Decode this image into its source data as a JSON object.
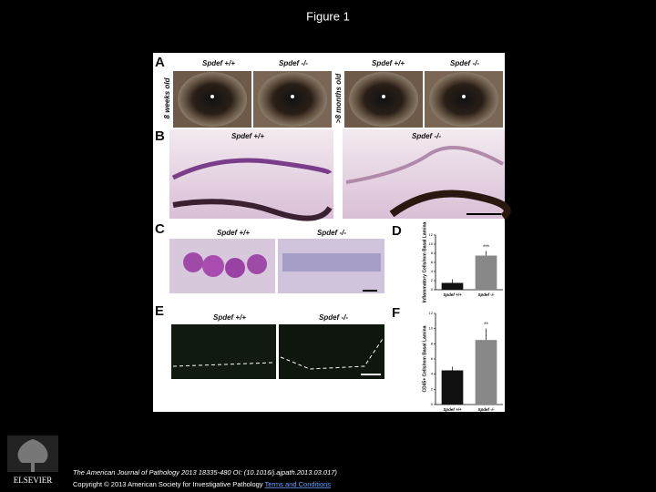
{
  "slide": {
    "title": "Figure 1",
    "figure": {
      "A": {
        "label": "A",
        "headers": [
          "Spdef +/+",
          "Spdef -/-",
          "Spdef +/+",
          "Spdef -/-"
        ],
        "ages": [
          "8 weeks old",
          ">8 months old"
        ]
      },
      "B": {
        "label": "B",
        "headers": [
          "Spdef +/+",
          "Spdef -/-"
        ]
      },
      "C": {
        "label": "C",
        "headers": [
          "Spdef +/+",
          "Spdef -/-"
        ]
      },
      "D": {
        "label": "D",
        "chart": {
          "type": "bar",
          "ylabel": "Inflammatory Cells/mm Basal Lamina",
          "categories": [
            "Spdef +/+",
            "Spdef -/-"
          ],
          "values": [
            1.5,
            7.5
          ],
          "errors": [
            0.8,
            1
          ],
          "colors": [
            "#111111",
            "#888888"
          ],
          "ylim": [
            0,
            12
          ],
          "yticks": [
            0,
            2,
            4,
            6,
            8,
            10,
            12
          ],
          "significance": "***"
        }
      },
      "E": {
        "label": "E",
        "headers": [
          "Spdef +/+",
          "Spdef -/-"
        ]
      },
      "F": {
        "label": "F",
        "chart": {
          "type": "bar",
          "ylabel": "CD45+ Cells/mm Basal Lamina",
          "categories": [
            "Spdef +/+",
            "Spdef -/-"
          ],
          "values": [
            4.5,
            8.5
          ],
          "errors": [
            0.5,
            1.5
          ],
          "colors": [
            "#111111",
            "#888888"
          ],
          "ylim": [
            0,
            12
          ],
          "yticks": [
            0,
            2,
            4,
            6,
            8,
            10,
            12
          ],
          "significance": "**"
        }
      }
    },
    "footer": {
      "publisher": "ELSEVIER",
      "citation": "The American Journal of Pathology 2013 18335-480 OI: (10.1016/j.ajpath.2013.03.017)",
      "copyright": "Copyright © 2013 American Society for Investigative Pathology",
      "link": "Terms and Conditions"
    }
  }
}
